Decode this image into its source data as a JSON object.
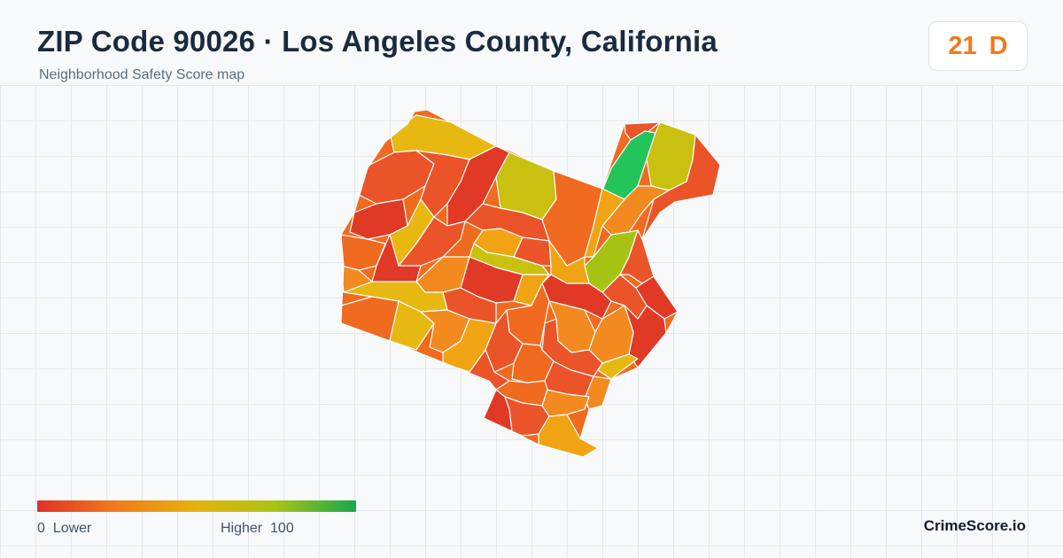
{
  "header": {
    "title": "ZIP Code 90026 · Los Angeles County, California",
    "subtitle": "Neighborhood Safety Score map"
  },
  "score": {
    "value": "21",
    "grade": "D",
    "color": "#ee7a1c"
  },
  "legend": {
    "min": "0",
    "min_label": "Lower",
    "max_label": "Higher",
    "max": "100",
    "colors": [
      "#e03127",
      "#f07d1d",
      "#e6b20f",
      "#a8c414",
      "#17a84e"
    ]
  },
  "brand": "CrimeScore.io",
  "map": {
    "region_colors": {
      "red": "#e03a26",
      "red_orange": "#ea5428",
      "orange": "#f06a1f",
      "orange_light": "#f28a1f",
      "amber": "#f0a414",
      "gold": "#e8b812",
      "yellow_green": "#c9c010",
      "lime": "#a6c313",
      "green": "#22c55a"
    }
  }
}
